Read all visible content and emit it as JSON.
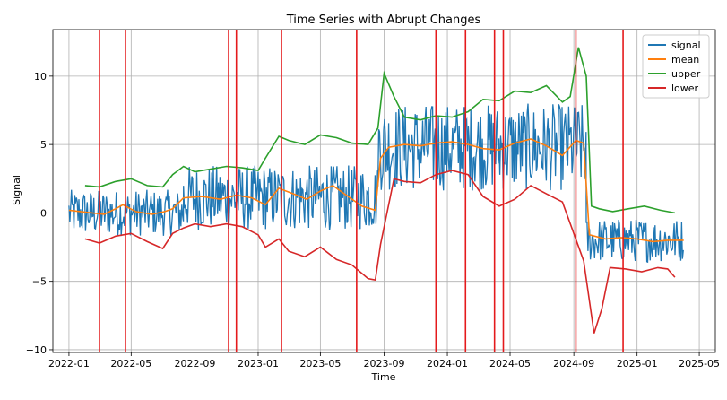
{
  "chart_data": {
    "type": "line",
    "title": "Time Series with Abrupt Changes",
    "xlabel": "Time",
    "ylabel": "Signal",
    "xlim": [
      "2021-12-01",
      "2025-06-01"
    ],
    "ylim": [
      -10.2,
      13.4
    ],
    "grid": true,
    "legend_position": "top-right",
    "x_ticks": [
      "2022-01",
      "2022-05",
      "2022-09",
      "2023-01",
      "2023-05",
      "2023-09",
      "2024-01",
      "2024-05",
      "2024-09",
      "2025-01",
      "2025-05"
    ],
    "y_ticks": [
      -10,
      -5,
      0,
      5,
      10
    ],
    "y_tick_labels": [
      "−10",
      "−5",
      "0",
      "5",
      "10"
    ],
    "series": [
      {
        "name": "signal",
        "color": "#1f77b4",
        "note_shape": "noisy around mean with amplitude roughly mean±2",
        "segments": [
          {
            "start": "2022-01-01",
            "end": "2022-08-10",
            "mean": 0.0,
            "amp": 1.7
          },
          {
            "start": "2022-08-10",
            "end": "2023-08-20",
            "mean": 1.1,
            "amp": 2.4
          },
          {
            "start": "2023-08-20",
            "end": "2024-09-25",
            "mean": 4.8,
            "amp": 3.2
          },
          {
            "start": "2024-09-25",
            "end": "2025-04-01",
            "mean": -2.0,
            "amp": 1.6
          }
        ]
      },
      {
        "name": "mean",
        "color": "#ff7f0e",
        "x": [
          "2022-01-01",
          "2022-02-15",
          "2022-03-10",
          "2022-04-01",
          "2022-04-15",
          "2022-05-10",
          "2022-06-10",
          "2022-07-05",
          "2022-07-20",
          "2022-08-10",
          "2022-09-15",
          "2022-10-20",
          "2022-11-20",
          "2022-12-20",
          "2023-01-15",
          "2023-02-10",
          "2023-03-10",
          "2023-04-05",
          "2023-05-01",
          "2023-05-25",
          "2023-06-20",
          "2023-07-20",
          "2023-08-15",
          "2023-08-25",
          "2023-09-10",
          "2023-10-10",
          "2023-11-10",
          "2023-12-10",
          "2024-01-10",
          "2024-02-10",
          "2024-03-10",
          "2024-04-10",
          "2024-05-10",
          "2024-06-10",
          "2024-07-10",
          "2024-08-10",
          "2024-09-05",
          "2024-09-20",
          "2024-10-01",
          "2024-11-01",
          "2024-12-01",
          "2025-01-01",
          "2025-02-01",
          "2025-03-01",
          "2025-04-01"
        ],
        "y": [
          0.2,
          0.0,
          -0.1,
          0.3,
          0.6,
          0.1,
          -0.1,
          0.1,
          0.3,
          1.1,
          1.2,
          1.0,
          1.3,
          1.1,
          0.6,
          1.8,
          1.4,
          1.0,
          1.6,
          2.0,
          1.3,
          0.5,
          0.2,
          4.0,
          4.8,
          5.0,
          4.9,
          5.1,
          5.2,
          5.0,
          4.7,
          4.6,
          5.1,
          5.4,
          4.9,
          4.2,
          5.3,
          5.1,
          -1.6,
          -1.9,
          -1.8,
          -1.9,
          -2.1,
          -2.0,
          -2.0
        ]
      },
      {
        "name": "upper",
        "color": "#2ca02c",
        "x": [
          "2022-02-01",
          "2022-03-01",
          "2022-04-01",
          "2022-05-01",
          "2022-06-01",
          "2022-07-01",
          "2022-07-20",
          "2022-08-10",
          "2022-09-01",
          "2022-10-01",
          "2022-11-01",
          "2022-12-01",
          "2023-01-01",
          "2023-01-15",
          "2023-02-10",
          "2023-03-01",
          "2023-04-01",
          "2023-05-01",
          "2023-06-01",
          "2023-07-01",
          "2023-08-01",
          "2023-08-20",
          "2023-09-01",
          "2023-09-20",
          "2023-10-10",
          "2023-11-10",
          "2023-12-10",
          "2024-01-10",
          "2024-02-10",
          "2024-03-10",
          "2024-04-10",
          "2024-05-10",
          "2024-06-10",
          "2024-07-10",
          "2024-08-10",
          "2024-08-25",
          "2024-09-10",
          "2024-09-25",
          "2024-10-05",
          "2024-10-20",
          "2024-11-15",
          "2024-12-15",
          "2025-01-15",
          "2025-02-15",
          "2025-03-15"
        ],
        "y": [
          2.0,
          1.9,
          2.3,
          2.5,
          2.0,
          1.9,
          2.8,
          3.4,
          3.0,
          3.2,
          3.4,
          3.3,
          3.1,
          4.0,
          5.6,
          5.3,
          5.0,
          5.7,
          5.5,
          5.1,
          5.0,
          6.2,
          10.2,
          8.5,
          7.0,
          6.8,
          7.1,
          7.0,
          7.4,
          8.3,
          8.2,
          8.9,
          8.8,
          9.3,
          8.1,
          8.5,
          12.1,
          10.0,
          0.5,
          0.3,
          0.1,
          0.3,
          0.5,
          0.2,
          0.0
        ]
      },
      {
        "name": "lower",
        "color": "#d62728",
        "x": [
          "2022-02-01",
          "2022-03-01",
          "2022-04-01",
          "2022-05-01",
          "2022-06-01",
          "2022-07-01",
          "2022-07-20",
          "2022-08-10",
          "2022-09-01",
          "2022-10-01",
          "2022-11-01",
          "2022-12-01",
          "2023-01-01",
          "2023-01-15",
          "2023-02-10",
          "2023-03-01",
          "2023-04-01",
          "2023-05-01",
          "2023-06-01",
          "2023-07-01",
          "2023-08-01",
          "2023-08-15",
          "2023-08-25",
          "2023-09-20",
          "2023-10-10",
          "2023-11-10",
          "2023-12-10",
          "2024-01-10",
          "2024-02-10",
          "2024-03-10",
          "2024-04-10",
          "2024-05-10",
          "2024-06-10",
          "2024-07-10",
          "2024-08-10",
          "2024-09-01",
          "2024-09-20",
          "2024-10-10",
          "2024-10-25",
          "2024-11-10",
          "2024-12-10",
          "2025-01-10",
          "2025-02-10",
          "2025-03-01",
          "2025-03-15"
        ],
        "y": [
          -1.9,
          -2.2,
          -1.7,
          -1.5,
          -2.1,
          -2.6,
          -1.5,
          -1.1,
          -0.8,
          -1.0,
          -0.8,
          -1.0,
          -1.6,
          -2.5,
          -1.9,
          -2.8,
          -3.2,
          -2.5,
          -3.4,
          -3.8,
          -4.8,
          -4.9,
          -2.3,
          2.5,
          2.3,
          2.2,
          2.8,
          3.1,
          2.8,
          1.2,
          0.5,
          1.0,
          2.0,
          1.4,
          0.8,
          -1.5,
          -3.5,
          -8.8,
          -7.0,
          -4.0,
          -4.1,
          -4.3,
          -4.0,
          -4.1,
          -4.7
        ]
      }
    ],
    "vertical_lines": {
      "color": "#e41a1c",
      "x": [
        "2022-03-01",
        "2022-04-20",
        "2022-11-05",
        "2022-11-20",
        "2023-02-15",
        "2023-07-10",
        "2023-12-10",
        "2024-02-05",
        "2024-04-01",
        "2024-04-18",
        "2024-09-05",
        "2024-12-05"
      ]
    }
  }
}
